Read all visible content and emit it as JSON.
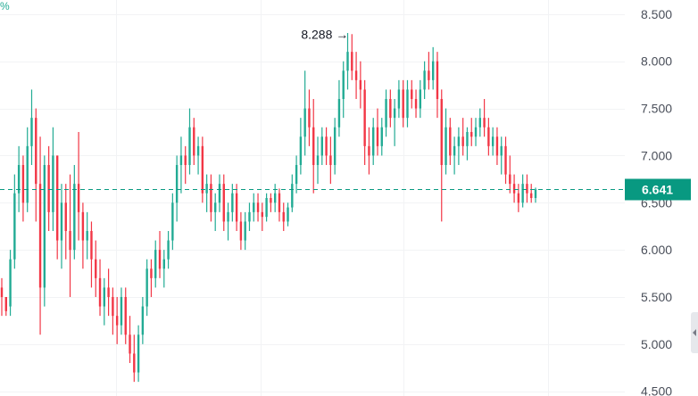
{
  "unit_label": "%",
  "colors": {
    "up": "#22ab94",
    "down": "#f23645",
    "grid": "#f2f3f5",
    "badge": "#089981"
  },
  "icons": {
    "scroll_handle": "chevron-left-icon"
  },
  "chart_data": {
    "type": "candlestick",
    "ylim": [
      4.45,
      8.65
    ],
    "y_ticks": [
      "8.500",
      "8.000",
      "7.500",
      "7.000",
      "6.500",
      "6.000",
      "5.500",
      "5.000",
      "4.500"
    ],
    "y_tick_values": [
      8.5,
      8.0,
      7.5,
      7.0,
      6.5,
      6.0,
      5.5,
      5.0,
      4.5
    ],
    "current_price": 6.641,
    "current_price_label": "6.641",
    "annotations": [
      {
        "text": "8.288 →",
        "value": 8.288
      }
    ],
    "candles": [
      [
        5.6,
        5.7,
        5.3,
        5.5
      ],
      [
        5.5,
        5.5,
        5.3,
        5.35
      ],
      [
        5.4,
        6.0,
        5.3,
        5.9
      ],
      [
        5.9,
        6.8,
        5.8,
        6.6
      ],
      [
        6.6,
        7.1,
        6.4,
        6.9
      ],
      [
        6.9,
        7.0,
        6.3,
        6.5
      ],
      [
        6.5,
        7.3,
        6.4,
        7.1
      ],
      [
        7.1,
        7.7,
        6.9,
        7.4
      ],
      [
        7.4,
        7.5,
        6.3,
        6.7
      ],
      [
        6.7,
        7.2,
        5.1,
        5.6
      ],
      [
        5.6,
        7.0,
        5.4,
        6.9
      ],
      [
        6.9,
        7.1,
        6.2,
        6.4
      ],
      [
        6.4,
        7.3,
        6.2,
        7.0
      ],
      [
        7.0,
        7.0,
        5.9,
        6.1
      ],
      [
        6.1,
        6.7,
        5.8,
        6.5
      ],
      [
        6.5,
        6.7,
        5.9,
        6.2
      ],
      [
        6.2,
        6.8,
        5.5,
        6.0
      ],
      [
        6.0,
        6.9,
        5.9,
        6.7
      ],
      [
        6.7,
        7.25,
        6.1,
        6.4
      ],
      [
        6.4,
        6.5,
        5.8,
        6.1
      ],
      [
        6.1,
        6.4,
        5.9,
        6.2
      ],
      [
        6.2,
        6.3,
        5.6,
        5.9
      ],
      [
        5.9,
        6.1,
        5.5,
        5.7
      ],
      [
        5.7,
        5.9,
        5.3,
        5.4
      ],
      [
        5.4,
        5.7,
        5.2,
        5.6
      ],
      [
        5.6,
        5.8,
        5.3,
        5.5
      ],
      [
        5.5,
        5.6,
        5.1,
        5.3
      ],
      [
        5.3,
        5.5,
        5.0,
        5.2
      ],
      [
        5.2,
        5.6,
        5.1,
        5.5
      ],
      [
        5.5,
        5.6,
        5.0,
        5.1
      ],
      [
        5.1,
        5.3,
        4.8,
        4.9
      ],
      [
        4.9,
        5.1,
        4.6,
        4.7
      ],
      [
        4.7,
        5.2,
        4.6,
        5.1
      ],
      [
        5.1,
        5.5,
        5.0,
        5.4
      ],
      [
        5.4,
        5.9,
        5.3,
        5.8
      ],
      [
        5.8,
        5.9,
        5.5,
        5.7
      ],
      [
        5.7,
        6.1,
        5.6,
        6.0
      ],
      [
        6.0,
        6.2,
        5.7,
        5.8
      ],
      [
        5.8,
        6.0,
        5.6,
        5.9
      ],
      [
        5.9,
        6.2,
        5.8,
        6.1
      ],
      [
        6.1,
        6.6,
        6.0,
        6.5
      ],
      [
        6.5,
        7.0,
        6.3,
        6.9
      ],
      [
        6.9,
        7.2,
        6.6,
        7.0
      ],
      [
        7.0,
        7.1,
        6.7,
        6.9
      ],
      [
        6.9,
        7.5,
        6.8,
        7.3
      ],
      [
        7.3,
        7.4,
        6.9,
        7.0
      ],
      [
        7.0,
        7.2,
        6.8,
        7.1
      ],
      [
        7.1,
        7.2,
        6.5,
        6.6
      ],
      [
        6.6,
        6.8,
        6.4,
        6.7
      ],
      [
        6.7,
        6.8,
        6.3,
        6.4
      ],
      [
        6.4,
        6.6,
        6.2,
        6.5
      ],
      [
        6.5,
        6.8,
        6.4,
        6.7
      ],
      [
        6.7,
        6.8,
        6.2,
        6.3
      ],
      [
        6.3,
        6.5,
        6.1,
        6.4
      ],
      [
        6.4,
        6.7,
        6.3,
        6.6
      ],
      [
        6.6,
        6.7,
        6.2,
        6.3
      ],
      [
        6.3,
        6.4,
        6.0,
        6.1
      ],
      [
        6.1,
        6.4,
        6.0,
        6.3
      ],
      [
        6.3,
        6.5,
        6.2,
        6.4
      ],
      [
        6.4,
        6.6,
        6.3,
        6.5
      ],
      [
        6.5,
        6.6,
        6.3,
        6.4
      ],
      [
        6.4,
        6.5,
        6.2,
        6.35
      ],
      [
        6.35,
        6.6,
        6.3,
        6.55
      ],
      [
        6.55,
        6.6,
        6.4,
        6.5
      ],
      [
        6.5,
        6.7,
        6.4,
        6.6
      ],
      [
        6.6,
        6.65,
        6.3,
        6.4
      ],
      [
        6.4,
        6.5,
        6.2,
        6.3
      ],
      [
        6.3,
        6.5,
        6.25,
        6.45
      ],
      [
        6.45,
        6.8,
        6.4,
        6.7
      ],
      [
        6.7,
        7.0,
        6.6,
        6.9
      ],
      [
        6.9,
        7.4,
        6.8,
        7.2
      ],
      [
        7.2,
        7.9,
        7.0,
        7.5
      ],
      [
        7.5,
        7.7,
        7.1,
        7.3
      ],
      [
        7.3,
        7.6,
        6.6,
        6.9
      ],
      [
        6.9,
        7.2,
        6.7,
        7.0
      ],
      [
        7.0,
        7.3,
        6.9,
        7.2
      ],
      [
        7.2,
        7.3,
        6.9,
        7.0
      ],
      [
        7.0,
        7.2,
        6.7,
        6.9
      ],
      [
        6.9,
        7.4,
        6.8,
        7.3
      ],
      [
        7.3,
        7.8,
        7.2,
        7.6
      ],
      [
        7.6,
        8.0,
        7.4,
        7.9
      ],
      [
        7.9,
        8.3,
        7.7,
        8.1
      ],
      [
        8.1,
        8.288,
        7.8,
        7.9
      ],
      [
        7.9,
        8.1,
        7.6,
        7.8
      ],
      [
        7.8,
        8.0,
        7.5,
        7.7
      ],
      [
        7.7,
        7.8,
        6.9,
        7.1
      ],
      [
        7.1,
        7.3,
        6.8,
        7.0
      ],
      [
        7.0,
        7.4,
        6.9,
        7.3
      ],
      [
        7.3,
        7.5,
        7.0,
        7.1
      ],
      [
        7.1,
        7.4,
        7.0,
        7.3
      ],
      [
        7.3,
        7.7,
        7.2,
        7.6
      ],
      [
        7.6,
        7.7,
        7.3,
        7.4
      ],
      [
        7.4,
        7.6,
        7.1,
        7.5
      ],
      [
        7.5,
        7.8,
        7.4,
        7.7
      ],
      [
        7.7,
        7.8,
        7.3,
        7.4
      ],
      [
        7.4,
        7.8,
        7.3,
        7.7
      ],
      [
        7.7,
        7.8,
        7.5,
        7.6
      ],
      [
        7.6,
        7.7,
        7.4,
        7.5
      ],
      [
        7.5,
        7.8,
        7.4,
        7.7
      ],
      [
        7.7,
        8.0,
        7.6,
        7.9
      ],
      [
        7.9,
        8.1,
        7.7,
        7.8
      ],
      [
        7.8,
        8.15,
        7.7,
        8.0
      ],
      [
        8.0,
        8.1,
        7.4,
        7.6
      ],
      [
        7.6,
        7.7,
        6.3,
        6.9
      ],
      [
        6.9,
        7.5,
        6.8,
        7.3
      ],
      [
        7.3,
        7.4,
        6.9,
        7.0
      ],
      [
        7.0,
        7.2,
        6.8,
        7.1
      ],
      [
        7.1,
        7.3,
        6.9,
        7.2
      ],
      [
        7.2,
        7.4,
        7.0,
        7.1
      ],
      [
        7.1,
        7.3,
        6.95,
        7.25
      ],
      [
        7.25,
        7.4,
        7.1,
        7.2
      ],
      [
        7.2,
        7.4,
        7.1,
        7.3
      ],
      [
        7.3,
        7.5,
        7.2,
        7.4
      ],
      [
        7.4,
        7.6,
        7.2,
        7.3
      ],
      [
        7.3,
        7.4,
        7.0,
        7.1
      ],
      [
        7.1,
        7.3,
        7.0,
        7.2
      ],
      [
        7.2,
        7.3,
        6.9,
        7.0
      ],
      [
        7.0,
        7.2,
        6.8,
        7.1
      ],
      [
        7.1,
        7.2,
        6.7,
        6.8
      ],
      [
        6.8,
        7.0,
        6.6,
        6.7
      ],
      [
        6.7,
        6.8,
        6.5,
        6.6
      ],
      [
        6.6,
        6.7,
        6.4,
        6.5
      ],
      [
        6.5,
        6.8,
        6.45,
        6.7
      ],
      [
        6.7,
        6.8,
        6.5,
        6.6
      ],
      [
        6.6,
        6.7,
        6.5,
        6.55
      ],
      [
        6.55,
        6.66,
        6.5,
        6.641
      ]
    ]
  }
}
